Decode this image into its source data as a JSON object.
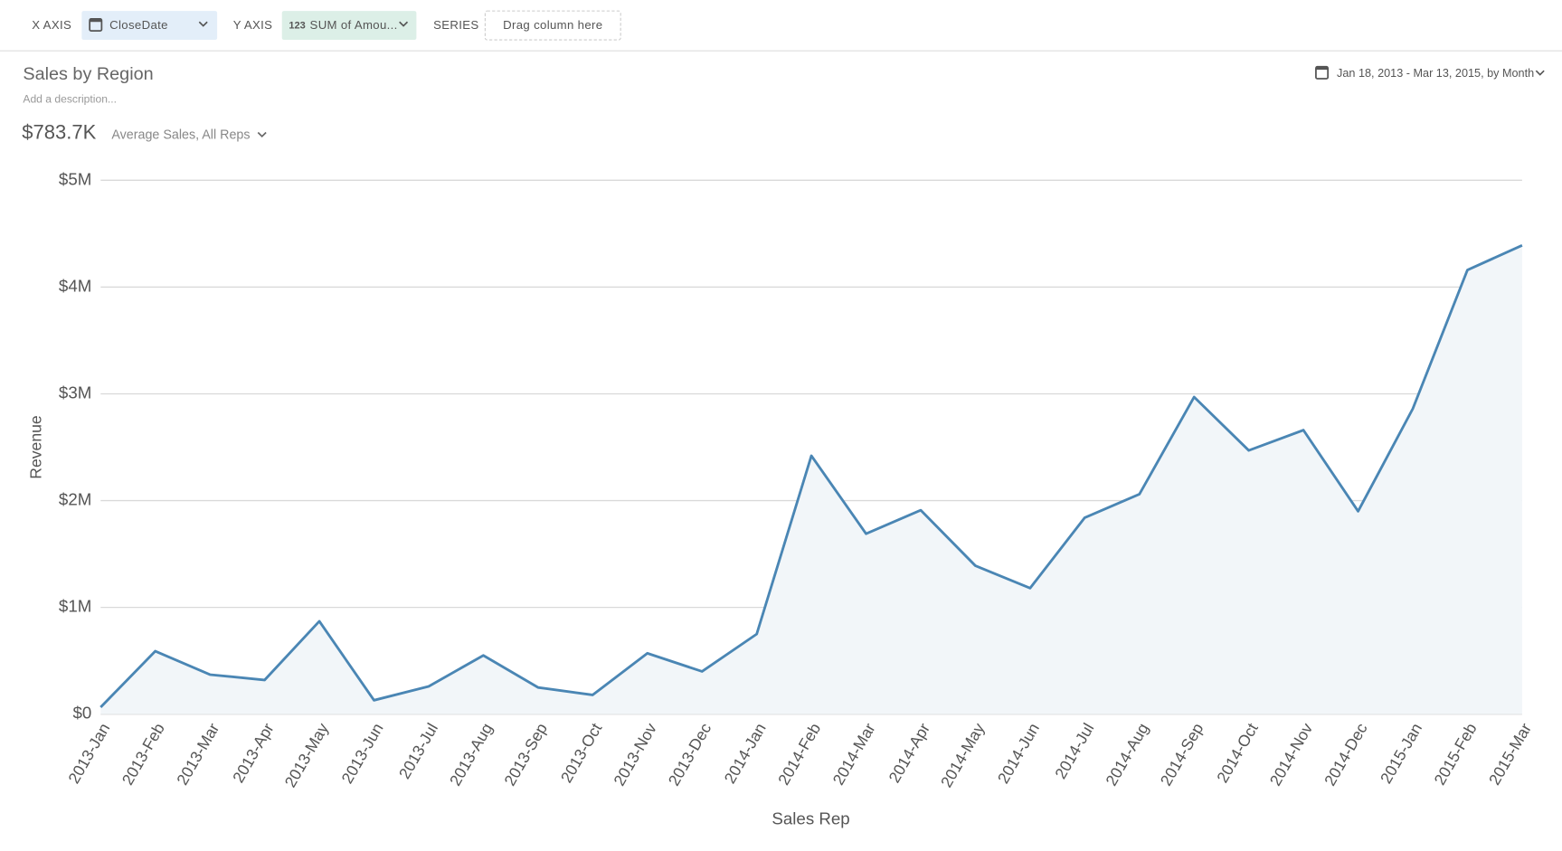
{
  "toolbar": {
    "x_axis_label": "X AXIS",
    "x_axis_field": "CloseDate",
    "y_axis_label": "Y AXIS",
    "y_axis_field_icon": "123",
    "y_axis_field": "SUM of Amou...",
    "series_label": "SERIES",
    "series_placeholder": "Drag column here"
  },
  "header": {
    "title": "Sales by Region",
    "description": "Add a description...",
    "metric_value": "$783.7K",
    "metric_label": "Average Sales, All Reps",
    "date_range": "Jan 18, 2013 - Mar 13, 2015, by Month"
  },
  "chart_data": {
    "type": "area",
    "x_label": "Sales Rep",
    "y_label": "Revenue",
    "categories": [
      "2013-Jan",
      "2013-Feb",
      "2013-Mar",
      "2013-Apr",
      "2013-May",
      "2013-Jun",
      "2013-Jul",
      "2013-Aug",
      "2013-Sep",
      "2013-Oct",
      "2013-Nov",
      "2013-Dec",
      "2014-Jan",
      "2014-Feb",
      "2014-Mar",
      "2014-Apr",
      "2014-May",
      "2014-Jun",
      "2014-Jul",
      "2014-Aug",
      "2014-Sep",
      "2014-Oct",
      "2014-Nov",
      "2014-Dec",
      "2015-Jan",
      "2015-Feb",
      "2015-Mar"
    ],
    "values": [
      65000,
      590000,
      370000,
      320000,
      870000,
      130000,
      260000,
      550000,
      250000,
      180000,
      570000,
      400000,
      750000,
      2420000,
      1690000,
      1910000,
      1390000,
      1180000,
      1840000,
      2060000,
      2970000,
      2470000,
      2660000,
      1900000,
      2860000,
      4160000,
      4390000
    ],
    "color": "#4a86b4",
    "fill_color": "#f2f6f9",
    "ylim": [
      0,
      5000000
    ],
    "yticks": [
      {
        "value": 0,
        "label": "$0"
      },
      {
        "value": 1000000,
        "label": "$1M"
      },
      {
        "value": 2000000,
        "label": "$2M"
      },
      {
        "value": 3000000,
        "label": "$3M"
      },
      {
        "value": 4000000,
        "label": "$4M"
      },
      {
        "value": 5000000,
        "label": "$5M"
      }
    ],
    "grid": true
  }
}
